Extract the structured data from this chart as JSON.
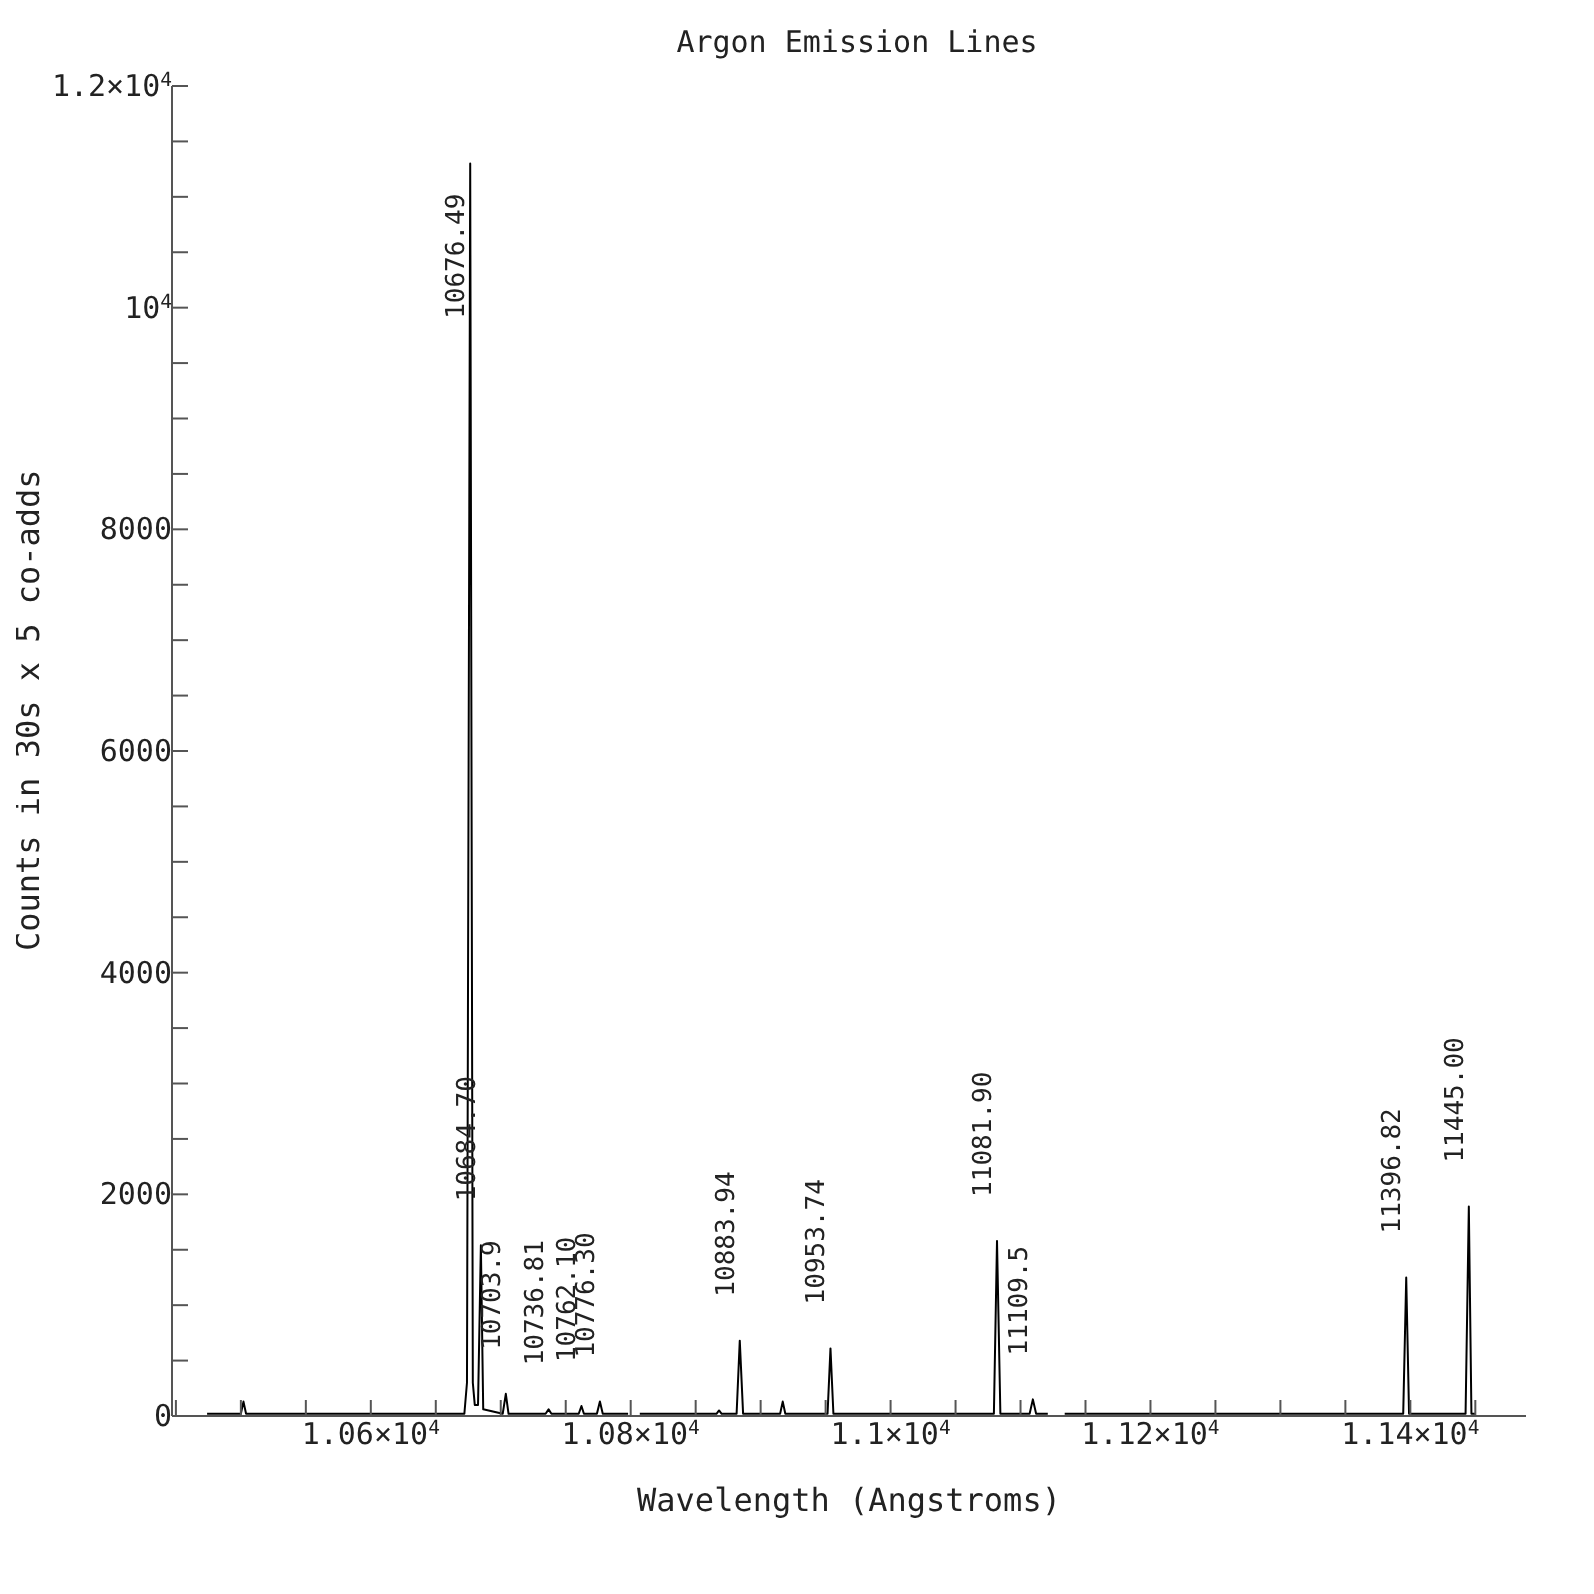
{
  "chart_data": {
    "type": "line",
    "title": "Argon Emission Lines",
    "xlabel": "Wavelength (Angstroms)",
    "ylabel": "Counts in 30s x 5 co-adds",
    "x": [
      10474,
      10500,
      10502,
      10504,
      10530,
      10672,
      10674,
      10676.49,
      10678.5,
      10680,
      10682.5,
      10684.7,
      10686.5,
      10701.5,
      10703.9,
      10706,
      10734.5,
      10736.81,
      10739,
      10760,
      10762.1,
      10764,
      10774,
      10776.3,
      10778.5,
      10798,
      10802,
      10807,
      10840,
      10866,
      10868,
      10870,
      10881.5,
      10883.94,
      10886.5,
      10915,
      10917,
      10919,
      10951.5,
      10953.74,
      10956,
      11079.5,
      11081.9,
      11084.5,
      11107,
      11109.5,
      11112,
      11121,
      11127,
      11134,
      11394.5,
      11396.82,
      11399,
      11442.5,
      11445,
      11447,
      11450
    ],
    "values": [
      20,
      20,
      130,
      20,
      20,
      20,
      300,
      11300,
      300,
      100,
      100,
      1540,
      60,
      20,
      200,
      20,
      20,
      60,
      20,
      20,
      90,
      20,
      20,
      130,
      20,
      20,
      null,
      20,
      20,
      20,
      50,
      20,
      20,
      680,
      20,
      20,
      130,
      20,
      20,
      610,
      20,
      20,
      1580,
      20,
      20,
      150,
      20,
      20,
      null,
      20,
      20,
      1250,
      20,
      20,
      1890,
      20,
      20
    ],
    "color": "#000000",
    "marker": "none",
    "line_style": "solid",
    "xlim": [
      10447,
      11489
    ],
    "xticks": [
      {
        "value": 10450,
        "label": null
      },
      {
        "value": 10500,
        "label": null
      },
      {
        "value": 10550,
        "label": null
      },
      {
        "value": 10600,
        "label": "1.06×10$^{4}$"
      },
      {
        "value": 10650,
        "label": null
      },
      {
        "value": 10700,
        "label": null
      },
      {
        "value": 10750,
        "label": null
      },
      {
        "value": 10800,
        "label": "1.08×10$^{4}$"
      },
      {
        "value": 10850,
        "label": null
      },
      {
        "value": 10900,
        "label": null
      },
      {
        "value": 10950,
        "label": null
      },
      {
        "value": 11000,
        "label": "1.1×10$^{4}$"
      },
      {
        "value": 11050,
        "label": null
      },
      {
        "value": 11100,
        "label": null
      },
      {
        "value": 11150,
        "label": null
      },
      {
        "value": 11200,
        "label": "1.12×10$^{4}$"
      },
      {
        "value": 11250,
        "label": null
      },
      {
        "value": 11300,
        "label": null
      },
      {
        "value": 11350,
        "label": null
      },
      {
        "value": 11400,
        "label": "1.14×10$^{4}$"
      },
      {
        "value": 11450,
        "label": null
      }
    ],
    "ylim": [
      0,
      12000
    ],
    "yticks": [
      0,
      {
        "value": 500,
        "label": null
      },
      {
        "value": 1000,
        "label": null
      },
      {
        "value": 1500,
        "label": null
      },
      2000,
      {
        "value": 2500,
        "label": null
      },
      {
        "value": 3000,
        "label": null
      },
      {
        "value": 3500,
        "label": null
      },
      4000,
      {
        "value": 4500,
        "label": null
      },
      {
        "value": 5000,
        "label": null
      },
      {
        "value": 5500,
        "label": null
      },
      6000,
      {
        "value": 6500,
        "label": null
      },
      {
        "value": 7000,
        "label": null
      },
      {
        "value": 7500,
        "label": null
      },
      8000,
      {
        "value": 8500,
        "label": null
      },
      {
        "value": 9000,
        "label": null
      },
      {
        "value": 9500,
        "label": null
      },
      {
        "value": 10000,
        "label": "10$^{4}$"
      },
      {
        "value": 10500,
        "label": null
      },
      {
        "value": 11000,
        "label": null
      },
      {
        "value": 11500,
        "label": null
      },
      {
        "value": 12000,
        "label": "1.2×10$^{4}$"
      }
    ],
    "annotations": [
      {
        "text": "10676.49",
        "x": 10676.49,
        "y": 11300
      },
      {
        "text": "10684.70",
        "x": 10684.7,
        "y": 1540
      },
      {
        "text": "10703.9",
        "x": 10703.9,
        "y": 200
      },
      {
        "text": "10736.81",
        "x": 10736.81,
        "y": 60
      },
      {
        "text": "10762.10",
        "x": 10762.1,
        "y": 90
      },
      {
        "text": "10776.30",
        "x": 10776.3,
        "y": 130
      },
      {
        "text": "10883.94",
        "x": 10883.94,
        "y": 680
      },
      {
        "text": "10953.74",
        "x": 10953.74,
        "y": 610
      },
      {
        "text": "11081.90",
        "x": 11081.9,
        "y": 1580
      },
      {
        "text": "11109.5",
        "x": 11109.5,
        "y": 150
      },
      {
        "text": "11396.82",
        "x": 11396.82,
        "y": 1250
      },
      {
        "text": "11445.00",
        "x": 11445,
        "y": 1890
      }
    ]
  }
}
